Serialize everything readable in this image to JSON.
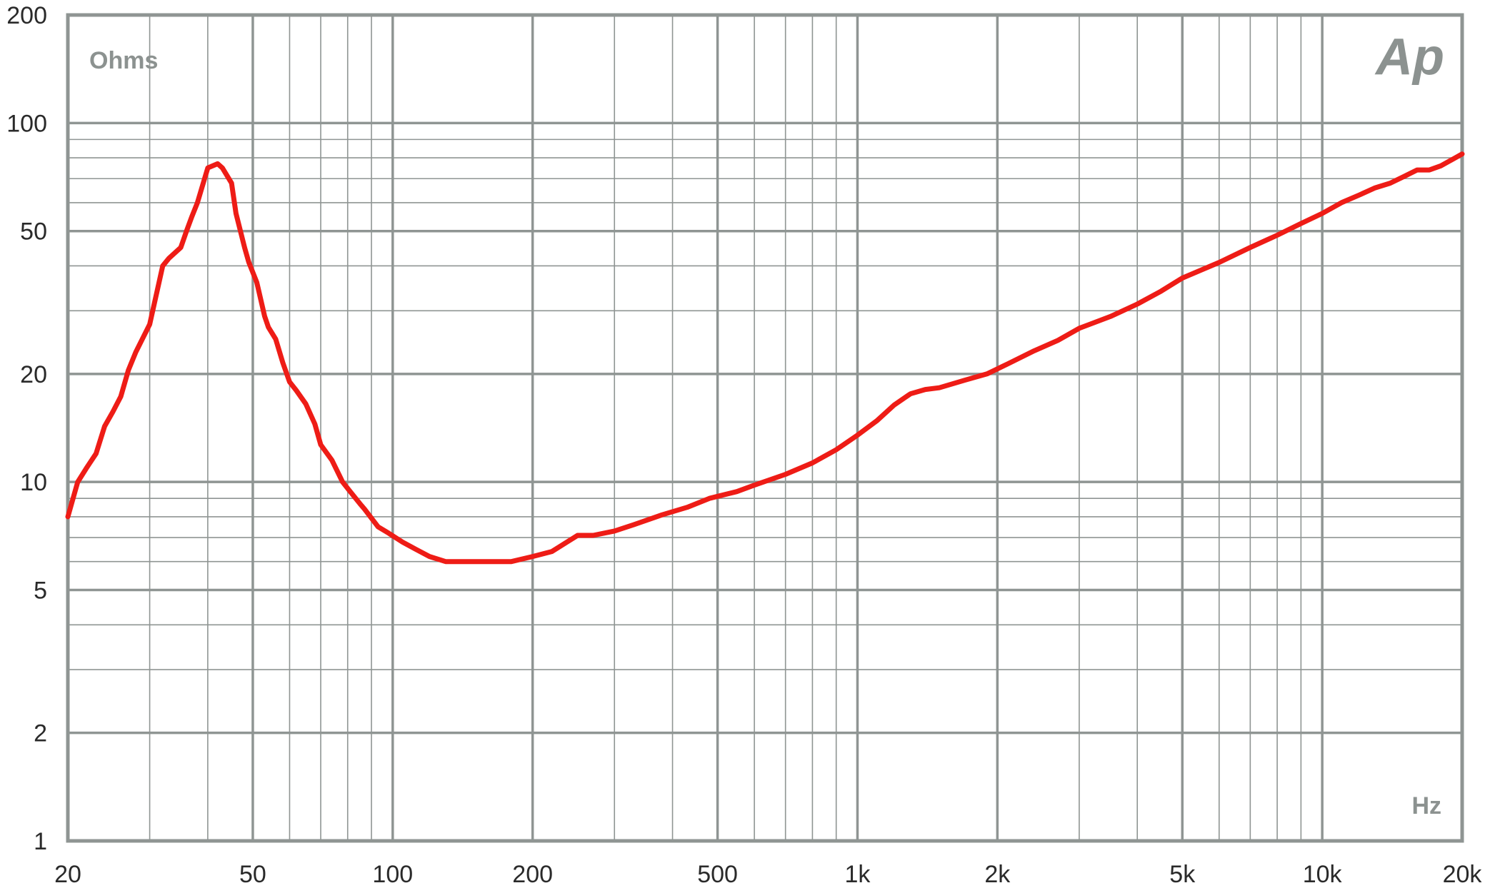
{
  "chart_data": {
    "type": "line",
    "x_scale": "log",
    "y_scale": "log",
    "xlim": [
      20,
      20000
    ],
    "ylim": [
      1,
      200
    ],
    "x_unit_label": "Hz",
    "y_unit_label": "Ohms",
    "logo_text": "Ap",
    "x_ticks": [
      {
        "value": 20,
        "label": "20"
      },
      {
        "value": 50,
        "label": "50"
      },
      {
        "value": 100,
        "label": "100"
      },
      {
        "value": 200,
        "label": "200"
      },
      {
        "value": 500,
        "label": "500"
      },
      {
        "value": 1000,
        "label": "1k"
      },
      {
        "value": 2000,
        "label": "2k"
      },
      {
        "value": 5000,
        "label": "5k"
      },
      {
        "value": 10000,
        "label": "10k"
      },
      {
        "value": 20000,
        "label": "20k"
      }
    ],
    "y_ticks": [
      {
        "value": 1,
        "label": "1"
      },
      {
        "value": 2,
        "label": "2"
      },
      {
        "value": 5,
        "label": "5"
      },
      {
        "value": 10,
        "label": "10"
      },
      {
        "value": 20,
        "label": "20"
      },
      {
        "value": 50,
        "label": "50"
      },
      {
        "value": 100,
        "label": "100"
      },
      {
        "value": 200,
        "label": "200"
      }
    ],
    "grid": true,
    "colors": {
      "line": "#ee1c16",
      "grid": "#8f9593",
      "text": "#2a2a2a"
    },
    "series": [
      {
        "name": "",
        "x": [
          20,
          21,
          22,
          23,
          24,
          25,
          26,
          27,
          28,
          30,
          32,
          33,
          35,
          36,
          37,
          38,
          40,
          42,
          43,
          45,
          46,
          48,
          49,
          51,
          53,
          54,
          56,
          58,
          60,
          62,
          65,
          68,
          70,
          74,
          78,
          81,
          85,
          87,
          93,
          98,
          105,
          112,
          120,
          130,
          140,
          160,
          180,
          200,
          220,
          250,
          270,
          300,
          330,
          380,
          430,
          480,
          550,
          600,
          700,
          800,
          900,
          1000,
          1100,
          1200,
          1300,
          1400,
          1500,
          1700,
          1900,
          2100,
          2400,
          2700,
          3000,
          3500,
          4000,
          4500,
          5000,
          6000,
          7000,
          8000,
          9000,
          10000,
          11000,
          12000,
          13000,
          14000,
          15000,
          16000,
          17000,
          18000,
          19000,
          20000
        ],
        "y": [
          8.0,
          10.0,
          11.0,
          12.0,
          14.3,
          15.7,
          17.3,
          20.5,
          23.0,
          27.5,
          40.0,
          42.0,
          45.0,
          50.0,
          55.0,
          60.0,
          75.0,
          77.0,
          75.0,
          68.0,
          56.0,
          45.0,
          41.0,
          36.0,
          29.0,
          27.0,
          25.0,
          21.5,
          19.0,
          18.0,
          16.5,
          14.5,
          12.7,
          11.5,
          10.0,
          9.4,
          8.7,
          8.4,
          7.5,
          7.2,
          6.8,
          6.5,
          6.2,
          6.0,
          6.0,
          6.0,
          6.0,
          6.2,
          6.4,
          7.1,
          7.1,
          7.3,
          7.6,
          8.1,
          8.5,
          9.0,
          9.4,
          9.8,
          10.5,
          11.3,
          12.3,
          13.5,
          14.8,
          16.4,
          17.6,
          18.1,
          18.3,
          19.2,
          20.0,
          21.3,
          23.2,
          24.8,
          26.8,
          28.9,
          31.3,
          34.0,
          37.0,
          40.9,
          45.0,
          48.7,
          52.5,
          56.0,
          60.0,
          63.0,
          66.0,
          68.0,
          71.0,
          74.0,
          74.0,
          76.0,
          79.0,
          82.0
        ]
      }
    ]
  }
}
